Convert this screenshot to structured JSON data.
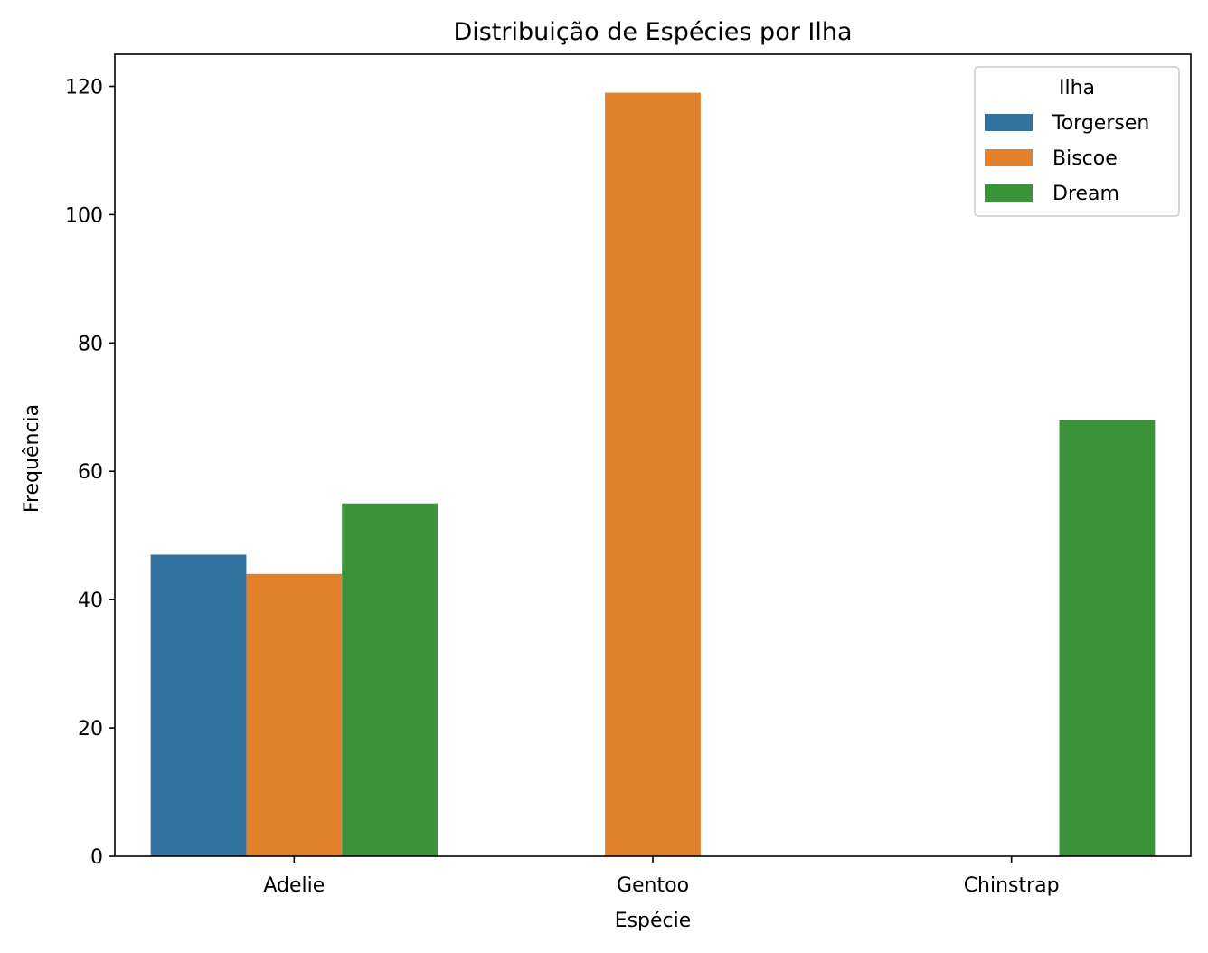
{
  "chart_data": {
    "type": "bar",
    "title": "Distribuição de Espécies por Ilha",
    "xlabel": "Espécie",
    "ylabel": "Frequência",
    "categories": [
      "Adelie",
      "Gentoo",
      "Chinstrap"
    ],
    "series": [
      {
        "name": "Torgersen",
        "color": "#3274a1",
        "values": [
          47,
          null,
          null
        ]
      },
      {
        "name": "Biscoe",
        "color": "#e1812c",
        "values": [
          44,
          119,
          null
        ]
      },
      {
        "name": "Dream",
        "color": "#3a923a",
        "values": [
          55,
          null,
          68
        ]
      }
    ],
    "ylim": [
      0,
      125
    ],
    "yticks": [
      0,
      20,
      40,
      60,
      80,
      100,
      120
    ],
    "grid": false,
    "legend": {
      "title": "Ilha",
      "placement": "top-right"
    }
  }
}
